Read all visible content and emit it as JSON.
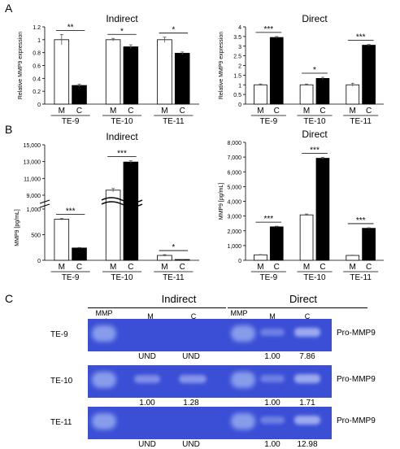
{
  "panels": {
    "a": "A",
    "b": "B",
    "c": "C"
  },
  "panel_a": {
    "indirect": {
      "title": "Indirect",
      "ylabel": "Relative MMP9 expression",
      "yticks": [
        "0",
        "0.2",
        "0.4",
        "0.6",
        "0.8",
        "1",
        "1.2"
      ],
      "ylim": [
        0,
        1.2
      ],
      "groups": [
        {
          "name": "TE-9",
          "M": 1.0,
          "C": 0.29,
          "M_err": 0.08,
          "C_err": 0.02,
          "sig": "**"
        },
        {
          "name": "TE-10",
          "M": 1.0,
          "C": 0.89,
          "M_err": 0.02,
          "C_err": 0.03,
          "sig": "*"
        },
        {
          "name": "TE-11",
          "M": 1.0,
          "C": 0.79,
          "M_err": 0.04,
          "C_err": 0.02,
          "sig": "*"
        }
      ]
    },
    "direct": {
      "title": "Direct",
      "ylabel": "Relative MMP9 expression",
      "yticks": [
        "0",
        "0.5",
        "1",
        "1.5",
        "2",
        "2.5",
        "3",
        "3.5",
        "4"
      ],
      "ylim": [
        0,
        4
      ],
      "groups": [
        {
          "name": "TE-9",
          "M": 1.0,
          "C": 3.45,
          "M_err": 0.04,
          "C_err": 0.05,
          "sig": "***"
        },
        {
          "name": "TE-10",
          "M": 1.0,
          "C": 1.33,
          "M_err": 0.04,
          "C_err": 0.06,
          "sig": "*"
        },
        {
          "name": "TE-11",
          "M": 1.0,
          "C": 3.05,
          "M_err": 0.08,
          "C_err": 0.04,
          "sig": "***"
        }
      ]
    }
  },
  "panel_b": {
    "indirect": {
      "title": "Indirect",
      "ylabel": "MMP9 [pg/mL]",
      "yticks_lower": [
        "0",
        "500",
        "1,000"
      ],
      "yticks_upper": [
        "9,000",
        "11,000",
        "13,000",
        "15,000"
      ],
      "groups": [
        {
          "name": "TE-9",
          "M": 800,
          "C": 240,
          "M_err": 15,
          "C_err": 10,
          "sig": "***"
        },
        {
          "name": "TE-10",
          "M": 9600,
          "C": 12950,
          "M_err": 200,
          "C_err": 150,
          "sig": "***"
        },
        {
          "name": "TE-11",
          "M": 95,
          "C": 15,
          "M_err": 15,
          "C_err": 3,
          "sig": "*"
        }
      ]
    },
    "direct": {
      "title": "Direct",
      "ylabel": "MMP9 [pg/mL]",
      "yticks": [
        "0",
        "1,000",
        "2,000",
        "3,000",
        "4,000",
        "5,000",
        "6,000",
        "7,000",
        "8,000"
      ],
      "ylim": [
        0,
        8000
      ],
      "groups": [
        {
          "name": "TE-9",
          "M": 370,
          "C": 2270,
          "M_err": 20,
          "C_err": 40,
          "sig": "***"
        },
        {
          "name": "TE-10",
          "M": 3080,
          "C": 6920,
          "M_err": 60,
          "C_err": 60,
          "sig": "***"
        },
        {
          "name": "TE-11",
          "M": 330,
          "C": 2170,
          "M_err": 20,
          "C_err": 40,
          "sig": "***"
        }
      ]
    }
  },
  "bar_labels": {
    "m": "M",
    "c": "C"
  },
  "chart_data": [
    {
      "type": "bar",
      "title": "Indirect",
      "ylabel": "Relative MMP9 expression",
      "categories": [
        "TE-9",
        "TE-10",
        "TE-11"
      ],
      "series": [
        {
          "name": "M",
          "values": [
            1.0,
            1.0,
            1.0
          ]
        },
        {
          "name": "C",
          "values": [
            0.29,
            0.89,
            0.79
          ]
        }
      ],
      "ylim": [
        0,
        1.2
      ]
    },
    {
      "type": "bar",
      "title": "Direct",
      "ylabel": "Relative MMP9 expression",
      "categories": [
        "TE-9",
        "TE-10",
        "TE-11"
      ],
      "series": [
        {
          "name": "M",
          "values": [
            1.0,
            1.0,
            1.0
          ]
        },
        {
          "name": "C",
          "values": [
            3.45,
            1.33,
            3.05
          ]
        }
      ],
      "ylim": [
        0,
        4
      ]
    },
    {
      "type": "bar",
      "title": "Indirect",
      "ylabel": "MMP9 [pg/mL]",
      "categories": [
        "TE-9",
        "TE-10",
        "TE-11"
      ],
      "series": [
        {
          "name": "M",
          "values": [
            800,
            9600,
            95
          ]
        },
        {
          "name": "C",
          "values": [
            240,
            12950,
            15
          ]
        }
      ],
      "ylim": [
        0,
        15000
      ]
    },
    {
      "type": "bar",
      "title": "Direct",
      "ylabel": "MMP9 [pg/mL]",
      "categories": [
        "TE-9",
        "TE-10",
        "TE-11"
      ],
      "series": [
        {
          "name": "M",
          "values": [
            370,
            3080,
            330
          ]
        },
        {
          "name": "C",
          "values": [
            2270,
            6920,
            2170
          ]
        }
      ],
      "ylim": [
        0,
        8000
      ]
    }
  ],
  "panel_c": {
    "indirect_title": "Indirect",
    "direct_title": "Direct",
    "lane_marker": "MMP\nmarker",
    "lane_m": "M",
    "lane_c": "C",
    "rows": [
      "TE-9",
      "TE-10",
      "TE-11"
    ],
    "pro_label": "Pro-MMP9",
    "indirect_values": [
      [
        "UND",
        "UND"
      ],
      [
        "1.00",
        "1.28"
      ],
      [
        "UND",
        "UND"
      ]
    ],
    "direct_values": [
      [
        "1.00",
        "7.86"
      ],
      [
        "1.00",
        "1.71"
      ],
      [
        "1.00",
        "12.98"
      ]
    ],
    "gel_bg": "#3b4fd6"
  }
}
